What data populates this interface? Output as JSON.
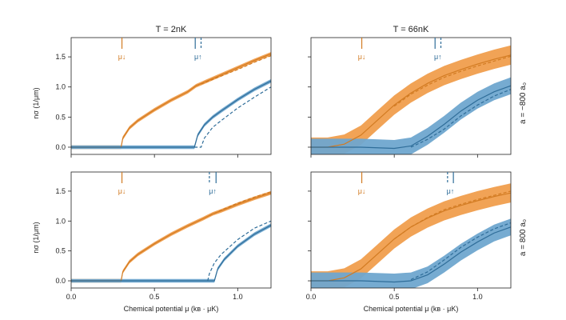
{
  "chart_data": {
    "type": "line",
    "column_titles": [
      "T = 2nK",
      "T = 66nK"
    ],
    "row_labels": [
      "a = −800 a₀",
      "a = 800 a₀"
    ],
    "xlabel": "Chemical potential μ (kʙ · μK)",
    "ylabel": "nσ (1/μm)",
    "xlim": [
      0.0,
      1.2
    ],
    "ylim": [
      -0.12,
      1.82
    ],
    "x_ticks": [
      "0.0",
      "0.5",
      "1.0"
    ],
    "x_tick_values": [
      0.0,
      0.5,
      1.0
    ],
    "y_ticks": [
      "0.0",
      "0.5",
      "1.0",
      "1.5"
    ],
    "y_tick_values": [
      0.0,
      0.5,
      1.0,
      1.5
    ],
    "series": [
      {
        "name": "↓",
        "color": "#d27b22",
        "band_color": "#f09e4d"
      },
      {
        "name": "↑",
        "color": "#2f6d99",
        "band_color": "#6fa6cf"
      }
    ],
    "marker_labels": [
      "μ↓",
      "μ↑"
    ],
    "panels": [
      {
        "id": "top-left",
        "markers": [
          {
            "label": "μ↓",
            "color": "#d27b22",
            "lines": [
              {
                "x": 0.305,
                "style": "solid"
              }
            ]
          },
          {
            "label": "μ↑",
            "color": "#2f6d99",
            "lines": [
              {
                "x": 0.745,
                "style": "solid"
              },
              {
                "x": 0.78,
                "style": "dashed"
              }
            ]
          }
        ],
        "curves": [
          {
            "series": 0,
            "style": "solid",
            "band": 0.03,
            "points": [
              [
                0.0,
                0.0
              ],
              [
                0.3,
                0.0
              ],
              [
                0.31,
                0.15
              ],
              [
                0.35,
                0.32
              ],
              [
                0.4,
                0.44
              ],
              [
                0.5,
                0.62
              ],
              [
                0.6,
                0.78
              ],
              [
                0.7,
                0.92
              ],
              [
                0.75,
                1.02
              ],
              [
                0.8,
                1.08
              ],
              [
                0.9,
                1.2
              ],
              [
                1.0,
                1.32
              ],
              [
                1.1,
                1.44
              ],
              [
                1.2,
                1.55
              ]
            ]
          },
          {
            "series": 0,
            "style": "dashed",
            "band": 0,
            "points": [
              [
                0.75,
                1.02
              ],
              [
                0.8,
                1.07
              ],
              [
                0.9,
                1.18
              ],
              [
                1.0,
                1.29
              ],
              [
                1.1,
                1.41
              ],
              [
                1.2,
                1.52
              ]
            ]
          },
          {
            "series": 1,
            "style": "solid",
            "band": 0.03,
            "points": [
              [
                0.0,
                0.0
              ],
              [
                0.74,
                0.0
              ],
              [
                0.76,
                0.2
              ],
              [
                0.8,
                0.37
              ],
              [
                0.85,
                0.5
              ],
              [
                0.9,
                0.6
              ],
              [
                1.0,
                0.79
              ],
              [
                1.1,
                0.96
              ],
              [
                1.2,
                1.1
              ]
            ]
          },
          {
            "series": 1,
            "style": "dashed",
            "band": 0,
            "points": [
              [
                0.74,
                0.0
              ],
              [
                0.78,
                0.0
              ],
              [
                0.8,
                0.15
              ],
              [
                0.85,
                0.33
              ],
              [
                0.9,
                0.44
              ],
              [
                1.0,
                0.65
              ],
              [
                1.1,
                0.83
              ],
              [
                1.2,
                1.0
              ]
            ]
          }
        ]
      },
      {
        "id": "top-right",
        "markers": [
          {
            "label": "μ↓",
            "color": "#d27b22",
            "lines": [
              {
                "x": 0.305,
                "style": "solid"
              }
            ]
          },
          {
            "label": "μ↑",
            "color": "#2f6d99",
            "lines": [
              {
                "x": 0.745,
                "style": "solid"
              },
              {
                "x": 0.78,
                "style": "dashed"
              }
            ]
          }
        ],
        "curves": [
          {
            "series": 0,
            "style": "solid",
            "band": 0.16,
            "points": [
              [
                0.0,
                0.0
              ],
              [
                0.1,
                0.0
              ],
              [
                0.2,
                0.05
              ],
              [
                0.3,
                0.2
              ],
              [
                0.4,
                0.45
              ],
              [
                0.5,
                0.7
              ],
              [
                0.6,
                0.9
              ],
              [
                0.7,
                1.06
              ],
              [
                0.8,
                1.19
              ],
              [
                0.9,
                1.29
              ],
              [
                1.0,
                1.38
              ],
              [
                1.1,
                1.46
              ],
              [
                1.2,
                1.53
              ]
            ]
          },
          {
            "series": 0,
            "style": "dashed",
            "band": 0,
            "points": [
              [
                0.5,
                0.68
              ],
              [
                0.6,
                0.88
              ],
              [
                0.7,
                1.03
              ],
              [
                0.8,
                1.16
              ],
              [
                0.9,
                1.26
              ],
              [
                1.0,
                1.35
              ],
              [
                1.1,
                1.43
              ],
              [
                1.2,
                1.51
              ]
            ]
          },
          {
            "series": 1,
            "style": "solid",
            "band": 0.14,
            "points": [
              [
                0.0,
                0.0
              ],
              [
                0.3,
                0.0
              ],
              [
                0.5,
                -0.02
              ],
              [
                0.6,
                0.02
              ],
              [
                0.7,
                0.18
              ],
              [
                0.8,
                0.38
              ],
              [
                0.9,
                0.6
              ],
              [
                1.0,
                0.78
              ],
              [
                1.1,
                0.92
              ],
              [
                1.2,
                1.02
              ]
            ]
          },
          {
            "series": 1,
            "style": "dashed",
            "band": 0,
            "points": [
              [
                0.6,
                0.0
              ],
              [
                0.7,
                0.13
              ],
              [
                0.8,
                0.3
              ],
              [
                0.9,
                0.52
              ],
              [
                1.0,
                0.7
              ],
              [
                1.1,
                0.85
              ],
              [
                1.2,
                0.96
              ]
            ]
          }
        ]
      },
      {
        "id": "bottom-left",
        "markers": [
          {
            "label": "μ↓",
            "color": "#d27b22",
            "lines": [
              {
                "x": 0.305,
                "style": "solid"
              }
            ]
          },
          {
            "label": "μ↑",
            "color": "#2f6d99",
            "lines": [
              {
                "x": 0.83,
                "style": "dashed"
              },
              {
                "x": 0.87,
                "style": "solid"
              }
            ]
          }
        ],
        "curves": [
          {
            "series": 0,
            "style": "solid",
            "band": 0.03,
            "points": [
              [
                0.0,
                0.0
              ],
              [
                0.3,
                0.0
              ],
              [
                0.31,
                0.15
              ],
              [
                0.35,
                0.32
              ],
              [
                0.4,
                0.44
              ],
              [
                0.5,
                0.62
              ],
              [
                0.6,
                0.78
              ],
              [
                0.7,
                0.92
              ],
              [
                0.8,
                1.05
              ],
              [
                0.85,
                1.12
              ],
              [
                0.9,
                1.17
              ],
              [
                1.0,
                1.28
              ],
              [
                1.1,
                1.38
              ],
              [
                1.2,
                1.47
              ]
            ]
          },
          {
            "series": 0,
            "style": "dashed",
            "band": 0,
            "points": [
              [
                0.83,
                1.09
              ],
              [
                0.9,
                1.18
              ],
              [
                1.0,
                1.3
              ],
              [
                1.1,
                1.4
              ],
              [
                1.2,
                1.49
              ]
            ]
          },
          {
            "series": 1,
            "style": "solid",
            "band": 0.03,
            "points": [
              [
                0.0,
                0.0
              ],
              [
                0.86,
                0.0
              ],
              [
                0.88,
                0.2
              ],
              [
                0.92,
                0.36
              ],
              [
                1.0,
                0.58
              ],
              [
                1.1,
                0.78
              ],
              [
                1.2,
                0.93
              ]
            ]
          },
          {
            "series": 1,
            "style": "dashed",
            "band": 0,
            "points": [
              [
                0.82,
                0.0
              ],
              [
                0.83,
                0.12
              ],
              [
                0.86,
                0.3
              ],
              [
                0.9,
                0.44
              ],
              [
                1.0,
                0.69
              ],
              [
                1.1,
                0.88
              ],
              [
                1.2,
                1.0
              ]
            ]
          }
        ]
      },
      {
        "id": "bottom-right",
        "markers": [
          {
            "label": "μ↓",
            "color": "#d27b22",
            "lines": [
              {
                "x": 0.305,
                "style": "solid"
              }
            ]
          },
          {
            "label": "μ↑",
            "color": "#2f6d99",
            "lines": [
              {
                "x": 0.82,
                "style": "dashed"
              },
              {
                "x": 0.855,
                "style": "solid"
              }
            ]
          }
        ],
        "curves": [
          {
            "series": 0,
            "style": "solid",
            "band": 0.16,
            "points": [
              [
                0.0,
                0.0
              ],
              [
                0.1,
                0.0
              ],
              [
                0.2,
                0.05
              ],
              [
                0.3,
                0.2
              ],
              [
                0.4,
                0.45
              ],
              [
                0.5,
                0.7
              ],
              [
                0.6,
                0.9
              ],
              [
                0.7,
                1.05
              ],
              [
                0.8,
                1.17
              ],
              [
                0.9,
                1.26
              ],
              [
                1.0,
                1.34
              ],
              [
                1.1,
                1.41
              ],
              [
                1.2,
                1.47
              ]
            ]
          },
          {
            "series": 0,
            "style": "dashed",
            "band": 0,
            "points": [
              [
                0.5,
                0.7
              ],
              [
                0.6,
                0.9
              ],
              [
                0.7,
                1.06
              ],
              [
                0.8,
                1.19
              ],
              [
                0.9,
                1.28
              ],
              [
                1.0,
                1.36
              ],
              [
                1.1,
                1.43
              ],
              [
                1.2,
                1.5
              ]
            ]
          },
          {
            "series": 1,
            "style": "solid",
            "band": 0.14,
            "points": [
              [
                0.0,
                0.0
              ],
              [
                0.3,
                0.0
              ],
              [
                0.5,
                -0.02
              ],
              [
                0.6,
                0.0
              ],
              [
                0.7,
                0.1
              ],
              [
                0.8,
                0.28
              ],
              [
                0.9,
                0.48
              ],
              [
                1.0,
                0.65
              ],
              [
                1.1,
                0.8
              ],
              [
                1.2,
                0.9
              ]
            ]
          },
          {
            "series": 1,
            "style": "dashed",
            "band": 0,
            "points": [
              [
                0.6,
                0.02
              ],
              [
                0.7,
                0.15
              ],
              [
                0.8,
                0.35
              ],
              [
                0.9,
                0.56
              ],
              [
                1.0,
                0.73
              ],
              [
                1.1,
                0.87
              ],
              [
                1.2,
                0.97
              ]
            ]
          }
        ]
      }
    ]
  }
}
